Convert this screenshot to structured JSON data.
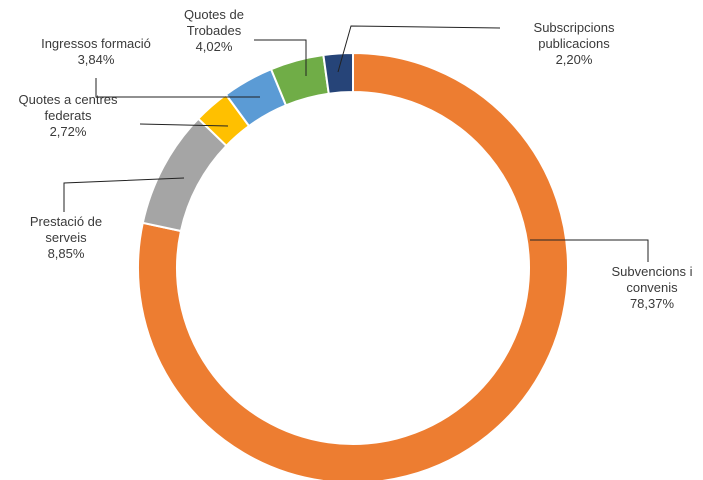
{
  "chart_data": {
    "type": "pie",
    "variant": "donut",
    "title": "",
    "legend": "none",
    "slices": [
      {
        "label": "Subvencions i convenis",
        "label_lines": [
          "Subvencions i",
          "convenis"
        ],
        "value": 78.37,
        "value_label": "78,37%",
        "color": "#ED7D31"
      },
      {
        "label": "Prestació de serveis",
        "label_lines": [
          "Prestació de",
          "serveis"
        ],
        "value": 8.85,
        "value_label": "8,85%",
        "color": "#A5A5A5"
      },
      {
        "label": "Quotes a centres federats",
        "label_lines": [
          "Quotes a centres",
          "federats"
        ],
        "value": 2.72,
        "value_label": "2,72%",
        "color": "#FFC000"
      },
      {
        "label": "Ingressos formació",
        "label_lines": [
          "Ingressos formació"
        ],
        "value": 3.84,
        "value_label": "3,84%",
        "color": "#5B9BD5"
      },
      {
        "label": "Quotes de Trobades",
        "label_lines": [
          "Quotes de",
          "Trobades"
        ],
        "value": 4.02,
        "value_label": "4,02%",
        "color": "#70AD47"
      },
      {
        "label": "Subscripcions publicacions",
        "label_lines": [
          "Subscripcions",
          "publicacions"
        ],
        "value": 2.2,
        "value_label": "2,20%",
        "color": "#264478"
      }
    ]
  }
}
